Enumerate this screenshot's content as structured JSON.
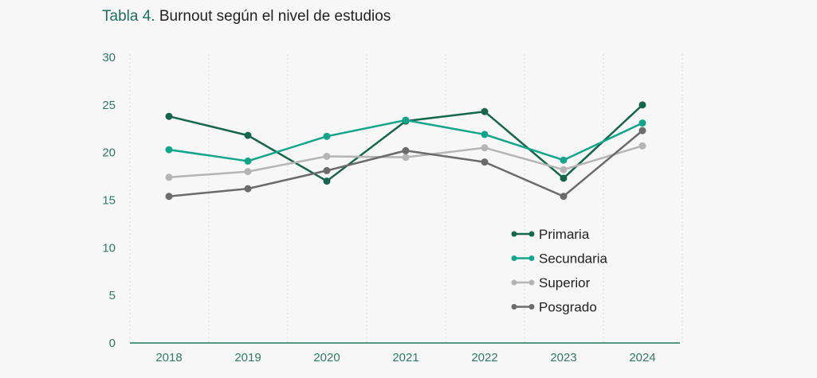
{
  "title_prefix": "Tabla 4.",
  "title_text": "Burnout según el nivel de estudios",
  "colors": {
    "axis": "#1f7a5a",
    "grid": "#d8d8d8",
    "tick_label": "#2f7a66",
    "title_prefix": "#1f6f5c"
  },
  "chart_data": {
    "type": "line",
    "title": "Tabla 4. Burnout según el nivel de estudios",
    "xlabel": "",
    "ylabel": "",
    "categories": [
      "2018",
      "2019",
      "2020",
      "2021",
      "2022",
      "2023",
      "2024"
    ],
    "ylim": [
      0,
      30
    ],
    "yticks": [
      0,
      5,
      10,
      15,
      20,
      25,
      30
    ],
    "grid": "vertical dotted",
    "legend_position": "bottom-right",
    "series": [
      {
        "name": "Primaria",
        "color": "#16664e",
        "values": [
          23.8,
          21.8,
          17.0,
          23.3,
          24.3,
          17.3,
          25.0
        ]
      },
      {
        "name": "Secundaria",
        "color": "#12a58a",
        "values": [
          20.3,
          19.1,
          21.7,
          23.4,
          21.9,
          19.2,
          23.1
        ]
      },
      {
        "name": "Superior",
        "color": "#b5b5b5",
        "values": [
          17.4,
          18.0,
          19.6,
          19.5,
          20.5,
          18.2,
          20.7
        ]
      },
      {
        "name": "Posgrado",
        "color": "#6b6b6b",
        "values": [
          15.4,
          16.2,
          18.1,
          20.2,
          19.0,
          15.4,
          22.3
        ]
      }
    ]
  }
}
